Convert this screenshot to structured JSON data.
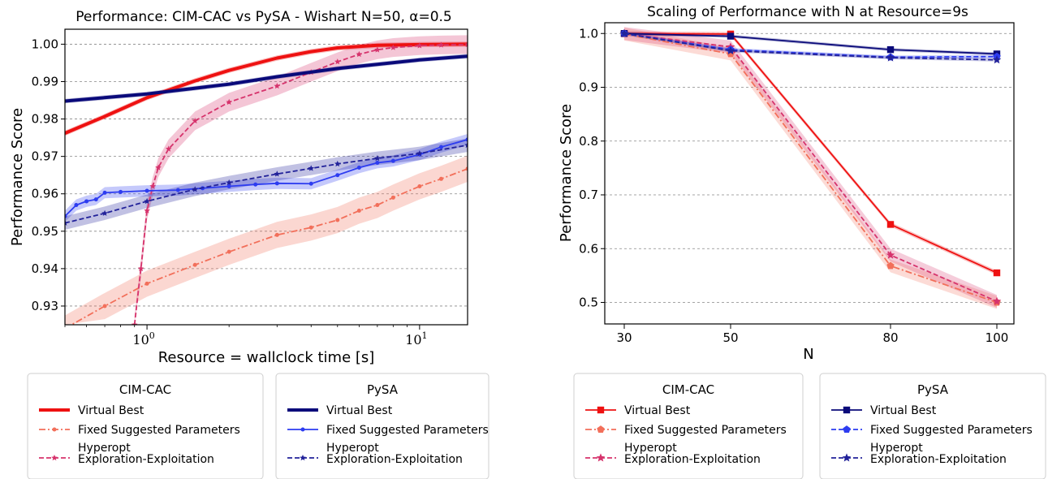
{
  "chart_data": [
    {
      "type": "line",
      "title": "Performance: CIM-CAC vs PySA - Wishart N=50, α=0.5",
      "xlabel": "Resource = wallclock time [s]",
      "ylabel": "Performance Score",
      "xscale": "log",
      "xlim": [
        0.5,
        15
      ],
      "ylim": [
        0.925,
        1.004
      ],
      "x_ticks": [
        1,
        10
      ],
      "x_tick_labels": [
        "10^0",
        "10^1"
      ],
      "y_ticks": [
        0.93,
        0.94,
        0.95,
        0.96,
        0.97,
        0.98,
        0.99,
        1.0
      ],
      "y_tick_labels": [
        "0.93",
        "0.94",
        "0.95",
        "0.96",
        "0.97",
        "0.98",
        "0.99",
        "1.00"
      ],
      "grid": "horizontal dashed",
      "series": [
        {
          "group": "CIM-CAC",
          "name": "Virtual Best",
          "color": "#ee1111",
          "style": "thick-solid",
          "marker": "none",
          "x": [
            0.5,
            0.7,
            1.0,
            1.5,
            2.0,
            3.0,
            4.0,
            5.0,
            7.0,
            10.0,
            15.0
          ],
          "y": [
            0.9762,
            0.9807,
            0.9857,
            0.9902,
            0.993,
            0.9963,
            0.998,
            0.999,
            0.9997,
            0.9999,
            1.0
          ],
          "band": 0.0007
        },
        {
          "group": "CIM-CAC",
          "name": "Fixed Suggested Parameters",
          "color": "#f26f5a",
          "style": "dashdot",
          "marker": "dot",
          "x": [
            0.5,
            0.7,
            1.0,
            1.5,
            2.0,
            3.0,
            4.0,
            5.0,
            6.0,
            7.0,
            8.0,
            10.0,
            12.0,
            15.0
          ],
          "y": [
            0.924,
            0.93,
            0.936,
            0.941,
            0.9445,
            0.949,
            0.951,
            0.953,
            0.9555,
            0.957,
            0.959,
            0.962,
            0.964,
            0.9667
          ],
          "band": 0.0035
        },
        {
          "group": "CIM-CAC",
          "name": "Hyperopt Exploration-Exploitation",
          "color": "#d6336c",
          "style": "dashed",
          "marker": "star",
          "x": [
            0.9,
            0.95,
            1.0,
            1.05,
            1.1,
            1.2,
            1.5,
            2.0,
            3.0,
            4.0,
            5.0,
            6.0,
            7.0,
            8.0,
            10.0,
            12.0,
            15.0
          ],
          "y": [
            0.925,
            0.94,
            0.9555,
            0.962,
            0.967,
            0.972,
            0.9795,
            0.9845,
            0.9888,
            0.9925,
            0.9953,
            0.9973,
            0.9985,
            0.9991,
            0.9996,
            0.9998,
            0.9999
          ],
          "band": 0.0025
        },
        {
          "group": "PySA",
          "name": "Virtual Best",
          "color": "#0a0a7a",
          "style": "thick-solid",
          "marker": "none",
          "x": [
            0.5,
            1.0,
            2.0,
            3.0,
            5.0,
            10.0,
            15.0
          ],
          "y": [
            0.9848,
            0.9867,
            0.9893,
            0.9913,
            0.9935,
            0.9958,
            0.9968
          ],
          "band": 0.0006
        },
        {
          "group": "PySA",
          "name": "Fixed Suggested Parameters",
          "color": "#2d3cf0",
          "style": "solid",
          "marker": "dot",
          "x": [
            0.5,
            0.55,
            0.6,
            0.65,
            0.7,
            0.8,
            1.0,
            1.3,
            1.6,
            2.0,
            2.5,
            3.0,
            4.0,
            5.0,
            6.0,
            7.0,
            8.0,
            10.0,
            12.0,
            15.0
          ],
          "y": [
            0.954,
            0.957,
            0.958,
            0.9585,
            0.9603,
            0.9605,
            0.9608,
            0.961,
            0.9615,
            0.962,
            0.9625,
            0.9628,
            0.9627,
            0.965,
            0.967,
            0.9683,
            0.9688,
            0.9705,
            0.9725,
            0.9745
          ],
          "band": 0.0015
        },
        {
          "group": "PySA",
          "name": "Hyperopt Exploration-Exploitation",
          "color": "#22229a",
          "style": "dashed",
          "marker": "star",
          "x": [
            0.5,
            0.7,
            1.0,
            1.5,
            2.0,
            3.0,
            4.0,
            5.0,
            7.0,
            10.0,
            15.0
          ],
          "y": [
            0.9522,
            0.9548,
            0.958,
            0.9612,
            0.963,
            0.9653,
            0.9668,
            0.968,
            0.9695,
            0.9708,
            0.973
          ],
          "band": 0.0018
        }
      ],
      "legend": [
        {
          "title": "CIM-CAC",
          "items": [
            {
              "label": "Virtual Best",
              "color": "#ee1111",
              "style": "thick-solid",
              "marker": "none"
            },
            {
              "label": "Fixed Suggested Parameters",
              "color": "#f26f5a",
              "style": "dashdot",
              "marker": "dot"
            },
            {
              "label_lines": [
                "Hyperopt",
                "Exploration-Exploitation"
              ],
              "color": "#d6336c",
              "style": "dashed",
              "marker": "star"
            }
          ]
        },
        {
          "title": "PySA",
          "items": [
            {
              "label": "Virtual Best",
              "color": "#0a0a7a",
              "style": "thick-solid",
              "marker": "none"
            },
            {
              "label": "Fixed Suggested Parameters",
              "color": "#2d3cf0",
              "style": "solid",
              "marker": "dot"
            },
            {
              "label_lines": [
                "Hyperopt",
                "Exploration-Exploitation"
              ],
              "color": "#22229a",
              "style": "dashed",
              "marker": "star"
            }
          ]
        }
      ]
    },
    {
      "type": "line",
      "title": "Scaling of Performance with N at Resource=9s",
      "xlabel": "N",
      "ylabel": "Performance Score",
      "categories": [
        "30",
        "50",
        "80",
        "100"
      ],
      "ylim": [
        0.46,
        1.02
      ],
      "y_ticks": [
        0.5,
        0.6,
        0.7,
        0.8,
        0.9,
        1.0
      ],
      "y_tick_labels": [
        "0.5",
        "0.6",
        "0.7",
        "0.8",
        "0.9",
        "1.0"
      ],
      "grid": "horizontal dashed",
      "series": [
        {
          "group": "CIM-CAC",
          "name": "Virtual Best",
          "color": "#ee1111",
          "style": "solid",
          "marker": "square",
          "values": [
            1.0,
            0.999,
            0.645,
            0.555
          ],
          "band": 0.004
        },
        {
          "group": "CIM-CAC",
          "name": "Fixed Suggested Parameters",
          "color": "#f26f5a",
          "style": "dashdot",
          "marker": "pentagon",
          "values": [
            0.999,
            0.962,
            0.568,
            0.5
          ],
          "band": 0.012
        },
        {
          "group": "CIM-CAC",
          "name": "Hyperopt Exploration-Exploitation",
          "color": "#d6336c",
          "style": "dashed",
          "marker": "star",
          "values": [
            1.0,
            0.975,
            0.588,
            0.502
          ],
          "band": 0.012
        },
        {
          "group": "PySA",
          "name": "Virtual Best",
          "color": "#0a0a7a",
          "style": "solid",
          "marker": "square",
          "values": [
            1.0,
            0.995,
            0.97,
            0.962
          ],
          "band": 0.003
        },
        {
          "group": "PySA",
          "name": "Fixed Suggested Parameters",
          "color": "#2d3cf0",
          "style": "dashed",
          "marker": "pentagon",
          "values": [
            1.0,
            0.97,
            0.956,
            0.957
          ],
          "band": 0.003
        },
        {
          "group": "PySA",
          "name": "Hyperopt Exploration-Exploitation",
          "color": "#22229a",
          "style": "dashed",
          "marker": "star",
          "values": [
            1.0,
            0.968,
            0.955,
            0.951
          ],
          "band": 0.003
        }
      ],
      "legend": [
        {
          "title": "CIM-CAC",
          "items": [
            {
              "label": "Virtual Best",
              "color": "#ee1111",
              "style": "solid",
              "marker": "square"
            },
            {
              "label": "Fixed Suggested Parameters",
              "color": "#f26f5a",
              "style": "dashdot",
              "marker": "pentagon"
            },
            {
              "label_lines": [
                "Hyperopt",
                "Exploration-Exploitation"
              ],
              "color": "#d6336c",
              "style": "dashed",
              "marker": "star"
            }
          ]
        },
        {
          "title": "PySA",
          "items": [
            {
              "label": "Virtual Best",
              "color": "#0a0a7a",
              "style": "solid",
              "marker": "square"
            },
            {
              "label": "Fixed Suggested Parameters",
              "color": "#2d3cf0",
              "style": "dashed",
              "marker": "pentagon"
            },
            {
              "label_lines": [
                "Hyperopt",
                "Exploration-Exploitation"
              ],
              "color": "#22229a",
              "style": "dashed",
              "marker": "star"
            }
          ]
        }
      ]
    }
  ]
}
